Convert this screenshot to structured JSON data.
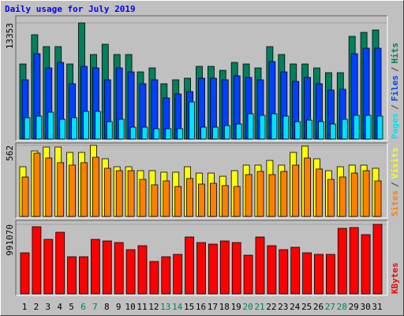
{
  "chart_data": {
    "type": "bar",
    "title": "Daily usage for July 2019",
    "categories": [
      "1",
      "2",
      "3",
      "4",
      "5",
      "6",
      "7",
      "8",
      "9",
      "10",
      "11",
      "12",
      "13",
      "14",
      "15",
      "16",
      "17",
      "18",
      "19",
      "20",
      "21",
      "22",
      "23",
      "24",
      "25",
      "26",
      "27",
      "28",
      "29",
      "30",
      "31"
    ],
    "category_colors": [
      "#000000",
      "#000000",
      "#000000",
      "#000000",
      "#000000",
      "#00805c",
      "#00805c",
      "#000000",
      "#000000",
      "#000000",
      "#000000",
      "#000000",
      "#00805c",
      "#00805c",
      "#000000",
      "#000000",
      "#000000",
      "#000000",
      "#000000",
      "#00805c",
      "#00805c",
      "#000000",
      "#000000",
      "#000000",
      "#000000",
      "#000000",
      "#00805c",
      "#00805c",
      "#000000",
      "#000000",
      "#000000"
    ],
    "legend_separator": "/",
    "panels": [
      {
        "ylim": [
          0,
          13353
        ],
        "yticks": [
          13353
        ],
        "series": [
          {
            "name": "Hits",
            "color": "#00805c",
            "values": [
              8630,
              11991,
              10628,
              10628,
              8630,
              13353,
              9720,
              10901,
              9720,
              9720,
              7721,
              8176,
              6359,
              6813,
              6995,
              8357,
              8357,
              7903,
              8811,
              8630,
              8176,
              10628,
              9720,
              8630,
              8630,
              8176,
              7631,
              7631,
              11809,
              12263,
              12536
            ]
          },
          {
            "name": "Files",
            "color": "#0040ff",
            "values": [
              6813,
              9811,
              8176,
              8811,
              6359,
              8357,
              8176,
              6813,
              8176,
              7721,
              6359,
              6813,
              4724,
              5178,
              5450,
              6995,
              6995,
              6813,
              7267,
              7086,
              6813,
              8902,
              7721,
              6631,
              7086,
              6359,
              5632,
              5723,
              9811,
              10447,
              10447
            ]
          },
          {
            "name": "Pages",
            "color": "#00e0ff",
            "values": [
              2453,
              2634,
              3089,
              2271,
              2453,
              3179,
              3179,
              1998,
              2271,
              1363,
              1363,
              1181,
              1181,
              1181,
              4269,
              1363,
              1363,
              1544,
              1726,
              2907,
              2725,
              2907,
              2634,
              1998,
              2180,
              1998,
              1726,
              2271,
              2725,
              2725,
              2634
            ]
          }
        ]
      },
      {
        "ylim": [
          0,
          562
        ],
        "yticks": [
          562
        ],
        "series": [
          {
            "name": "Visits",
            "color": "#ffff00",
            "values": [
              393,
              518,
              549,
              549,
              506,
              506,
              562,
              456,
              393,
              393,
              362,
              362,
              350,
              350,
              393,
              343,
              343,
              318,
              362,
              406,
              406,
              443,
              406,
              506,
              556,
              456,
              362,
              393,
              406,
              406,
              381
            ]
          },
          {
            "name": "Sites",
            "color": "#ff8000",
            "values": [
              312,
              500,
              462,
              425,
              406,
              425,
              468,
              381,
              362,
              362,
              293,
              250,
              281,
              237,
              300,
              256,
              262,
              244,
              237,
              331,
              356,
              331,
              356,
              406,
              462,
              375,
              293,
              312,
              343,
              362,
              281
            ]
          }
        ]
      },
      {
        "ylim": [
          0,
          991070
        ],
        "yticks": [
          991070
        ],
        "series": [
          {
            "name": "KBytes",
            "color": "#ff0000",
            "values": [
              585624,
              957270,
              777078,
              878436,
              529314,
              529314,
              777078,
              754554,
              732030,
              630672,
              686982,
              461742,
              529314,
              563100,
              810864,
              732030,
              709506,
              754554,
              732030,
              551838,
              810864,
              686982,
              630672,
              664458,
              585624,
              563100,
              563100,
              934746,
              946008,
              844650,
              991070
            ]
          }
        ]
      }
    ]
  }
}
